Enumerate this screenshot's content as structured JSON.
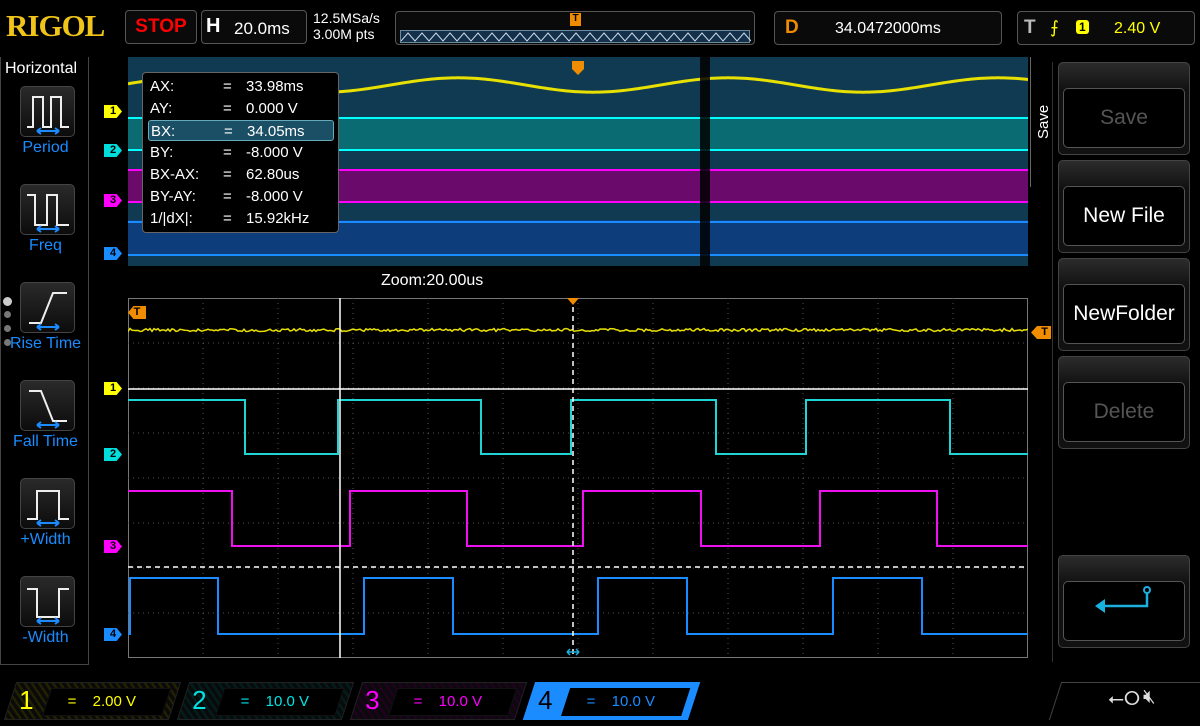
{
  "header": {
    "logo": "RIGOL",
    "run_state": "STOP",
    "timebase_key": "H",
    "timebase": "20.0ms",
    "sample_rate": "12.5MSa/s",
    "memory_depth": "3.00M pts",
    "delay_key": "D",
    "delay": "34.0472000ms",
    "trigger_key": "T",
    "trigger_edge": "rising-edge-icon",
    "trigger_source": "1",
    "trigger_level": "2.40 V"
  },
  "left_menu": {
    "title": "Horizontal",
    "items": [
      {
        "label": "Period",
        "icon": "period-icon"
      },
      {
        "label": "Freq",
        "icon": "frequency-icon"
      },
      {
        "label": "Rise Time",
        "icon": "rise-time-icon"
      },
      {
        "label": "Fall Time",
        "icon": "fall-time-icon"
      },
      {
        "label": "+Width",
        "icon": "positive-width-icon"
      },
      {
        "label": "-Width",
        "icon": "negative-width-icon"
      }
    ],
    "page_dots": 4,
    "page_selected": 1
  },
  "cursor_readout": [
    {
      "k": "AX:",
      "eq": "=",
      "v": "33.98ms"
    },
    {
      "k": "AY:",
      "eq": "=",
      "v": "0.000 V"
    },
    {
      "k": "BX:",
      "eq": "=",
      "v": "34.05ms",
      "selected": true
    },
    {
      "k": "BY:",
      "eq": "=",
      "v": "-8.000 V"
    },
    {
      "k": "BX-AX:",
      "eq": "=",
      "v": "62.80us"
    },
    {
      "k": "BY-AY:",
      "eq": "=",
      "v": "-8.000 V"
    },
    {
      "k": "1/|dX|:",
      "eq": "=",
      "v": "15.92kHz"
    }
  ],
  "zoom_label": "Zoom:20.00us",
  "trigger_marker": "T",
  "channel_markers": [
    "1",
    "2",
    "3",
    "4"
  ],
  "right_menu": {
    "tab": "Save",
    "buttons": [
      {
        "label": "Save",
        "enabled": false
      },
      {
        "label": "New File",
        "enabled": true
      },
      {
        "label": "NewFolder",
        "enabled": true
      },
      {
        "label": "Delete",
        "enabled": false
      }
    ],
    "back_icon": "return-arrow-icon"
  },
  "channels": [
    {
      "num": "1",
      "coupling": "=",
      "scale": "2.00 V",
      "color": "#ffff00"
    },
    {
      "num": "2",
      "coupling": "=",
      "scale": "10.0 V",
      "color": "#00e5e5"
    },
    {
      "num": "3",
      "coupling": "=",
      "scale": "10.0 V",
      "color": "#ff00ff"
    },
    {
      "num": "4",
      "coupling": "=",
      "scale": "10.0 V",
      "color": "#1a8cff"
    }
  ],
  "status_icons": [
    "usb-icon",
    "speaker-muted-icon"
  ]
}
